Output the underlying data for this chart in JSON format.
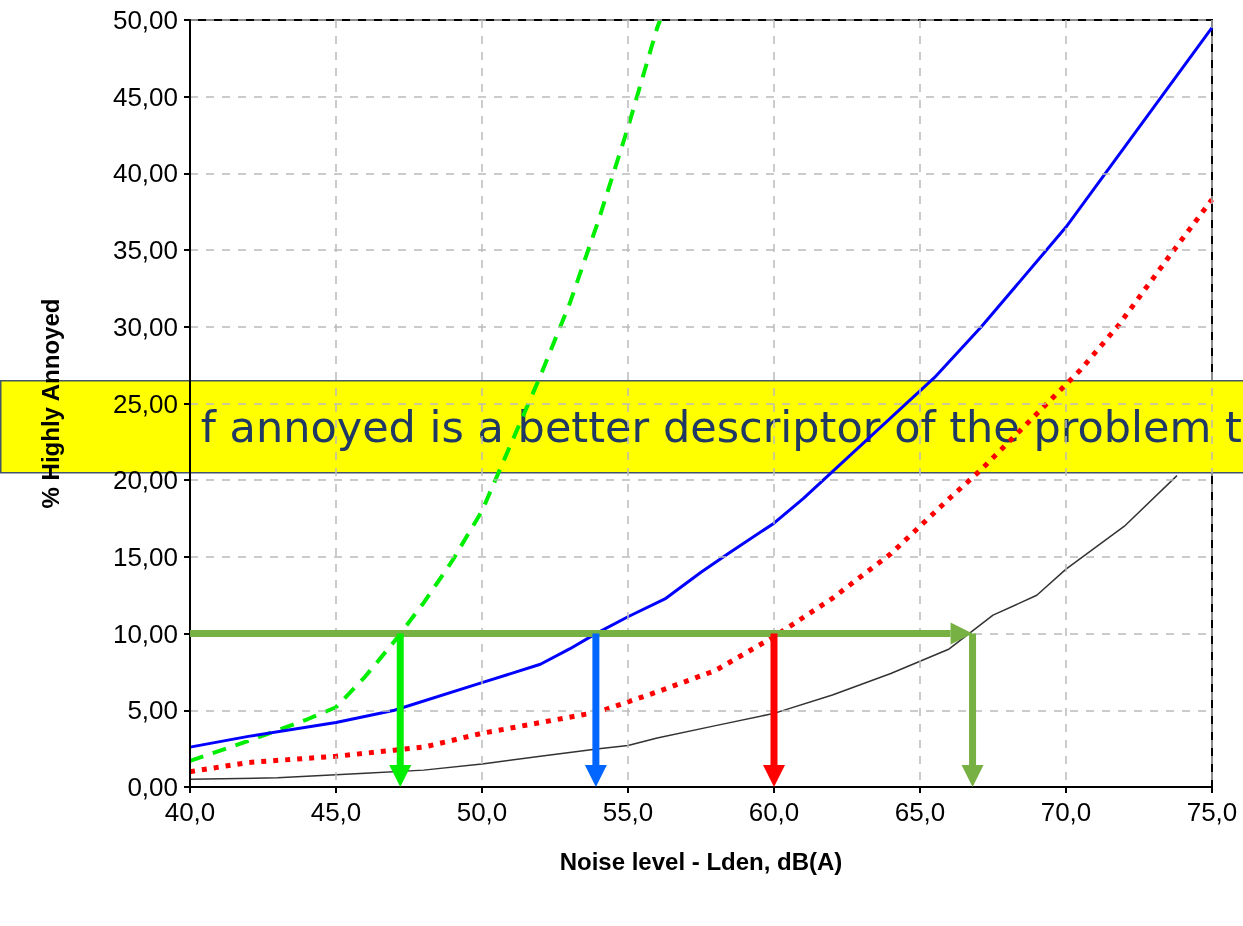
{
  "chart_data": {
    "type": "line",
    "xlabel": "Noise level - Lden, dB(A)",
    "ylabel": "% Highly Annoyed",
    "annotations": [
      "f annoyed is a better descriptor of the problem t"
    ],
    "xlim": [
      40,
      75
    ],
    "xticks": [
      {
        "value": 40,
        "label": "40,0"
      },
      {
        "value": 45,
        "label": "45,0"
      },
      {
        "value": 50,
        "label": "50,0"
      },
      {
        "value": 55,
        "label": "55,0"
      },
      {
        "value": 60,
        "label": "60,0"
      },
      {
        "value": 65,
        "label": "65,0"
      },
      {
        "value": 70,
        "label": "70,0"
      },
      {
        "value": 75,
        "label": "75,0"
      }
    ],
    "ylim": [
      0,
      50
    ],
    "yticks": [
      {
        "value": 0,
        "label": "0,00"
      },
      {
        "value": 5,
        "label": "5,00"
      },
      {
        "value": 10,
        "label": "10,00"
      },
      {
        "value": 15,
        "label": "15,00"
      },
      {
        "value": 20,
        "label": "20,00"
      },
      {
        "value": 25,
        "label": "25,00"
      },
      {
        "value": 30,
        "label": "30,00"
      },
      {
        "value": 35,
        "label": "35,00"
      },
      {
        "value": 40,
        "label": "40,00"
      },
      {
        "value": 45,
        "label": "45,00"
      },
      {
        "value": 50,
        "label": "50,00"
      }
    ],
    "grid": true,
    "marker": "none",
    "series": [
      {
        "color": "#00ee00",
        "line_style": "dashed",
        "x": [
          40,
          42,
          44,
          45,
          46,
          47,
          48,
          49,
          50,
          52,
          53,
          54,
          55,
          56,
          56.1
        ],
        "values": [
          1.7,
          3.0,
          4.4,
          5.2,
          7.2,
          9.5,
          12.0,
          14.8,
          18.0,
          26.8,
          31.5,
          37.0,
          43.0,
          49.5,
          50.0
        ]
      },
      {
        "color": "#0000ff",
        "line_style": "solid",
        "x": [
          40,
          42,
          45,
          47,
          50,
          52,
          53,
          53.9,
          55,
          56.3,
          57.5,
          58.5,
          60,
          61,
          65.5,
          67.1,
          70,
          72.5,
          75
        ],
        "values": [
          2.6,
          3.3,
          4.2,
          5.0,
          6.8,
          8.0,
          9.0,
          10.0,
          11.1,
          12.3,
          14.0,
          15.3,
          17.2,
          18.8,
          26.7,
          30.0,
          36.5,
          43.0,
          49.5
        ]
      },
      {
        "color": "#ff0000",
        "line_style": "dotted",
        "x": [
          40,
          42,
          45,
          47,
          48,
          50,
          52,
          54,
          56,
          58,
          60,
          62,
          64,
          66,
          67.1,
          70.5,
          71.8,
          73.5,
          75
        ],
        "values": [
          1.0,
          1.6,
          2.0,
          2.4,
          2.6,
          3.5,
          4.2,
          4.9,
          6.2,
          7.6,
          9.8,
          12.3,
          15.2,
          18.8,
          20.7,
          27.2,
          30.1,
          34.5,
          38.3
        ]
      },
      {
        "color": "#333333",
        "line_style": "solid",
        "x": [
          40,
          43,
          46,
          48,
          50,
          52,
          54,
          55,
          56,
          58,
          60,
          62,
          64,
          66,
          67.5,
          69,
          70,
          72,
          73.8
        ],
        "values": [
          0.5,
          0.6,
          0.9,
          1.1,
          1.5,
          2.0,
          2.5,
          2.7,
          3.2,
          4.0,
          4.8,
          6.0,
          7.4,
          9.0,
          11.2,
          12.5,
          14.2,
          17.0,
          20.3
        ]
      }
    ],
    "ref_lines": [
      {
        "axis": "y",
        "value": 10,
        "color": "#77b144"
      },
      {
        "axis": "x",
        "value": 47.2,
        "color": "#00ee00"
      },
      {
        "axis": "x",
        "value": 53.9,
        "color": "#0066ff"
      },
      {
        "axis": "x",
        "value": 60,
        "color": "#ff0000"
      },
      {
        "axis": "x",
        "value": 66.8,
        "color": "#77b144"
      }
    ]
  }
}
